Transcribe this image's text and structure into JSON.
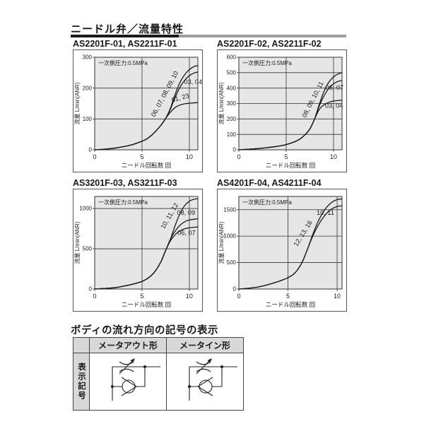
{
  "page": {
    "title": "ニードル弁／流量特性"
  },
  "colors": {
    "rule_black": "#1a1a1a",
    "rule_gray": "#9c9c9c",
    "plot_bg": "#e6e6e6",
    "line": "#1a1a1a",
    "border": "#333333",
    "table_header_bg": "#d8d8d8"
  },
  "symbol_section": {
    "title": "ボディの流れ方向の記号の表示",
    "row_header": "表示記号",
    "columns": [
      "メータアウト形",
      "メータイン形"
    ]
  },
  "chart_data": [
    {
      "type": "line",
      "heading": "AS2201F-01, AS2211F-01",
      "annotation": "一次側圧力:0.5MPa",
      "xlabel": "ニードル回転数 回",
      "ylabel": "流量 L/min(ANR)",
      "xlim": [
        0,
        10.9
      ],
      "ylim": [
        0,
        300
      ],
      "x_ticks": [
        0,
        5,
        10
      ],
      "y_ticks": [
        0,
        100,
        200,
        300
      ],
      "series": [
        {
          "name": "06, 07, 08, 09, 10",
          "label_x": 7.6,
          "label_y": 178,
          "label_rot": -62,
          "points": [
            [
              0,
              0
            ],
            [
              1,
              2
            ],
            [
              2,
              5
            ],
            [
              3,
              10
            ],
            [
              4,
              17
            ],
            [
              5,
              28
            ],
            [
              5.5,
              35
            ],
            [
              6,
              47
            ],
            [
              6.5,
              62
            ],
            [
              7,
              80
            ],
            [
              7.5,
              102
            ],
            [
              8,
              135
            ],
            [
              8.5,
              180
            ],
            [
              9,
              218
            ],
            [
              9.5,
              243
            ],
            [
              10,
              260
            ],
            [
              10.5,
              270
            ],
            [
              10.9,
              273
            ]
          ]
        },
        {
          "name": "03, 04",
          "label_x": 10.4,
          "label_y": 213,
          "label_rot": 0,
          "points": [
            [
              0,
              0
            ],
            [
              1,
              2
            ],
            [
              2,
              5
            ],
            [
              3,
              10
            ],
            [
              4,
              17
            ],
            [
              5,
              28
            ],
            [
              5.5,
              35
            ],
            [
              6,
              47
            ],
            [
              6.5,
              62
            ],
            [
              7,
              80
            ],
            [
              7.5,
              102
            ],
            [
              8,
              132
            ],
            [
              8.5,
              170
            ],
            [
              9,
              202
            ],
            [
              9.5,
              225
            ],
            [
              10,
              240
            ],
            [
              10.5,
              249
            ],
            [
              10.9,
              252
            ]
          ]
        },
        {
          "name": "01, 23",
          "label_x": 9.1,
          "label_y": 162,
          "label_rot": -15,
          "points": [
            [
              0,
              0
            ],
            [
              1,
              2
            ],
            [
              2,
              5
            ],
            [
              3,
              10
            ],
            [
              4,
              17
            ],
            [
              5,
              28
            ],
            [
              5.5,
              35
            ],
            [
              6,
              47
            ],
            [
              6.5,
              62
            ],
            [
              7,
              80
            ],
            [
              7.5,
              102
            ],
            [
              8,
              122
            ],
            [
              8.5,
              137
            ],
            [
              9,
              145
            ],
            [
              9.5,
              149
            ],
            [
              10,
              151
            ],
            [
              10.9,
              153
            ]
          ]
        }
      ]
    },
    {
      "type": "line",
      "heading": "AS2201F-02, AS2211F-02",
      "annotation": "一次側圧力:0.5MPa",
      "xlabel": "ニードル回転数 回",
      "ylabel": "流量 L/min(ANR)",
      "xlim": [
        0,
        10.9
      ],
      "ylim": [
        0,
        600
      ],
      "x_ticks": [
        0,
        5,
        10
      ],
      "y_ticks": [
        0,
        100,
        200,
        300,
        400,
        500,
        600
      ],
      "series": [
        {
          "name": "08, 09, 10, 11",
          "label_x": 8.0,
          "label_y": 320,
          "label_rot": -63,
          "points": [
            [
              0,
              0
            ],
            [
              2,
              8
            ],
            [
              3,
              14
            ],
            [
              4,
              22
            ],
            [
              5,
              34
            ],
            [
              6,
              55
            ],
            [
              6.5,
              72
            ],
            [
              7,
              98
            ],
            [
              7.5,
              135
            ],
            [
              8,
              200
            ],
            [
              8.5,
              295
            ],
            [
              9,
              380
            ],
            [
              9.5,
              438
            ],
            [
              10,
              472
            ],
            [
              10.5,
              492
            ],
            [
              10.9,
              500
            ]
          ]
        },
        {
          "name": "06, 07",
          "label_x": 10.1,
          "label_y": 390,
          "label_rot": 0,
          "points": [
            [
              0,
              0
            ],
            [
              2,
              8
            ],
            [
              3,
              14
            ],
            [
              4,
              22
            ],
            [
              5,
              34
            ],
            [
              6,
              55
            ],
            [
              6.5,
              72
            ],
            [
              7,
              98
            ],
            [
              7.5,
              135
            ],
            [
              8,
              200
            ],
            [
              8.5,
              285
            ],
            [
              9,
              350
            ],
            [
              9.5,
              398
            ],
            [
              10,
              428
            ],
            [
              10.5,
              444
            ],
            [
              10.9,
              450
            ]
          ]
        },
        {
          "name": "03, 04",
          "label_x": 10.05,
          "label_y": 272,
          "label_rot": 0,
          "points": [
            [
              0,
              0
            ],
            [
              2,
              8
            ],
            [
              3,
              14
            ],
            [
              4,
              22
            ],
            [
              5,
              34
            ],
            [
              6,
              55
            ],
            [
              6.5,
              72
            ],
            [
              7,
              98
            ],
            [
              7.5,
              135
            ],
            [
              8,
              200
            ],
            [
              8.5,
              262
            ],
            [
              9,
              292
            ],
            [
              9.5,
              308
            ],
            [
              10,
              316
            ],
            [
              10.9,
              322
            ]
          ]
        }
      ]
    },
    {
      "type": "line",
      "heading": "AS3201F-03, AS3211F-03",
      "annotation": "一次側圧力:0.5MPa",
      "xlabel": "ニードル回転数 回",
      "ylabel": "流量 L/min(ANR)",
      "xlim": [
        0,
        10.9
      ],
      "ylim": [
        0,
        1150
      ],
      "x_ticks": [
        0,
        5,
        10
      ],
      "y_ticks": [
        0,
        500,
        1000
      ],
      "series": [
        {
          "name": "10, 11, 12",
          "label_x": 8.1,
          "label_y": 895,
          "label_rot": -60,
          "points": [
            [
              0,
              0
            ],
            [
              2,
              15
            ],
            [
              3,
              35
            ],
            [
              4,
              60
            ],
            [
              5,
              95
            ],
            [
              5.5,
              125
            ],
            [
              6,
              170
            ],
            [
              6.5,
              240
            ],
            [
              7,
              340
            ],
            [
              7.5,
              480
            ],
            [
              8,
              620
            ],
            [
              8.5,
              790
            ],
            [
              9,
              935
            ],
            [
              9.5,
              1035
            ],
            [
              10,
              1090
            ],
            [
              10.5,
              1115
            ],
            [
              10.9,
              1122
            ]
          ]
        },
        {
          "name": "08, 09",
          "label_x": 9.65,
          "label_y": 920,
          "label_rot": 0,
          "points": [
            [
              0,
              0
            ],
            [
              2,
              15
            ],
            [
              3,
              35
            ],
            [
              4,
              60
            ],
            [
              5,
              95
            ],
            [
              5.5,
              125
            ],
            [
              6,
              170
            ],
            [
              6.5,
              240
            ],
            [
              7,
              340
            ],
            [
              7.5,
              480
            ],
            [
              8,
              620
            ],
            [
              8.5,
              720
            ],
            [
              9,
              792
            ],
            [
              9.5,
              835
            ],
            [
              10,
              858
            ],
            [
              10.9,
              872
            ]
          ]
        },
        {
          "name": "06, 07",
          "label_x": 9.7,
          "label_y": 670,
          "label_rot": 0,
          "points": [
            [
              0,
              0
            ],
            [
              2,
              15
            ],
            [
              3,
              35
            ],
            [
              4,
              60
            ],
            [
              5,
              95
            ],
            [
              5.5,
              125
            ],
            [
              6,
              170
            ],
            [
              6.5,
              240
            ],
            [
              7,
              340
            ],
            [
              7.5,
              480
            ],
            [
              8,
              600
            ],
            [
              8.5,
              675
            ],
            [
              9,
              722
            ],
            [
              9.5,
              748
            ],
            [
              10,
              760
            ],
            [
              10.9,
              772
            ]
          ]
        }
      ]
    },
    {
      "type": "line",
      "heading": "AS4201F-04, AS4211F-04",
      "annotation": "一次側圧力:0.5MPa",
      "xlabel": "ニードル回転数 回",
      "ylabel": "流量 L/min(ANR)",
      "xlim": [
        0,
        10.5
      ],
      "ylim": [
        0,
        1750
      ],
      "x_ticks": [
        0,
        5,
        10
      ],
      "y_ticks": [
        0,
        500,
        1000,
        1500
      ],
      "series": [
        {
          "name": "12, 13, 16",
          "label_x": 6.7,
          "label_y": 1030,
          "label_rot": -58,
          "points": [
            [
              0,
              0
            ],
            [
              1,
              15
            ],
            [
              2,
              40
            ],
            [
              3,
              85
            ],
            [
              4,
              140
            ],
            [
              4.5,
              175
            ],
            [
              5,
              215
            ],
            [
              5.5,
              270
            ],
            [
              6,
              370
            ],
            [
              6.5,
              530
            ],
            [
              7,
              760
            ],
            [
              7.5,
              1020
            ],
            [
              8,
              1250
            ],
            [
              8.5,
              1430
            ],
            [
              9,
              1560
            ],
            [
              9.5,
              1645
            ],
            [
              10,
              1690
            ],
            [
              10.5,
              1705
            ]
          ]
        },
        {
          "name": "10, 11",
          "label_x": 8.8,
          "label_y": 1400,
          "label_rot": 0,
          "points": [
            [
              0,
              0
            ],
            [
              1,
              15
            ],
            [
              2,
              40
            ],
            [
              3,
              85
            ],
            [
              4,
              140
            ],
            [
              4.5,
              175
            ],
            [
              5,
              215
            ],
            [
              5.5,
              270
            ],
            [
              6,
              370
            ],
            [
              6.5,
              530
            ],
            [
              7,
              760
            ],
            [
              7.5,
              990
            ],
            [
              8,
              1180
            ],
            [
              8.5,
              1330
            ],
            [
              9,
              1445
            ],
            [
              9.5,
              1520
            ],
            [
              10,
              1560
            ],
            [
              10.5,
              1572
            ]
          ]
        }
      ]
    }
  ]
}
